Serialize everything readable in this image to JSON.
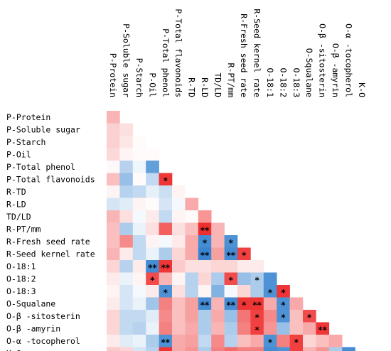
{
  "chart_data": {
    "type": "heatmap",
    "variables": [
      "P-Protein",
      "P-Soluble sugar",
      "P-Starch",
      "P-Oil",
      "P-Total phenol",
      "P-Total flavonoids",
      "R-TD",
      "R-LD",
      "TD/LD",
      "R-PT/mm",
      "R-Fresh seed rate",
      "R-Seed kernel rate",
      "O-18:1",
      "O-18:2",
      "O-18:3",
      "O-Squalane",
      "O-β -sitosterin",
      "O-β -amyrin",
      "O-α -tocopherol",
      "K-O"
    ],
    "scale": {
      "min": -1,
      "max": 1,
      "negative_color": "#2f7fcf",
      "neutral_color": "#ffffff",
      "positive_color": "#ee2b2b"
    },
    "matrix": [
      [
        0.35
      ],
      [
        0.22,
        0.15
      ],
      [
        0.22,
        0.12,
        0.02
      ],
      [
        0.18,
        0.05,
        0.02,
        0.02
      ],
      [
        0.03,
        -0.35,
        -0.08,
        -0.75
      ],
      [
        0.3,
        -0.5,
        0.02,
        -0.3,
        0.95
      ],
      [
        0.05,
        -0.35,
        -0.3,
        -0.12,
        -0.25,
        0.05
      ],
      [
        -0.2,
        -0.15,
        0.05,
        0.02,
        -0.2,
        -0.05,
        0.4
      ],
      [
        0.35,
        0.15,
        -0.05,
        0.1,
        -0.3,
        0.05,
        0.02,
        0.5
      ],
      [
        0.3,
        -0.4,
        -0.1,
        0.15,
        0.75,
        0.15,
        0.3,
        0.98,
        0.35
      ],
      [
        0.3,
        0.55,
        -0.3,
        0.05,
        -0.05,
        0.1,
        0.4,
        -0.9,
        0.35,
        -0.85
      ],
      [
        0.35,
        0.1,
        -0.3,
        -0.1,
        -0.4,
        0.2,
        0.4,
        -0.95,
        0.45,
        -0.9,
        0.9
      ],
      [
        0.2,
        -0.35,
        0.1,
        -0.9,
        0.95,
        0.25,
        0.15,
        0.15,
        0.2,
        0.2,
        0.1,
        0.1
      ],
      [
        0.1,
        -0.1,
        0.05,
        0.85,
        0.35,
        0.05,
        -0.35,
        0.2,
        -0.4,
        0.85,
        -0.5,
        -0.4,
        -0.85
      ],
      [
        0.05,
        -0.2,
        -0.05,
        0.1,
        -0.85,
        0.15,
        -0.35,
        0.05,
        -0.6,
        -0.05,
        0.2,
        -0.4,
        -0.85,
        0.95
      ],
      [
        0.1,
        -0.2,
        -0.1,
        -0.45,
        0.6,
        0.3,
        0.45,
        -0.9,
        0.35,
        -0.9,
        0.95,
        0.95,
        0.4,
        -0.85,
        0.4
      ],
      [
        0.2,
        -0.3,
        -0.3,
        -0.15,
        0.55,
        0.3,
        0.45,
        -0.4,
        0.4,
        -0.5,
        0.65,
        0.9,
        0.55,
        -0.85,
        0.3,
        0.85
      ],
      [
        0.2,
        -0.3,
        -0.35,
        -0.1,
        0.6,
        0.3,
        0.4,
        -0.4,
        0.35,
        -0.4,
        0.6,
        0.9,
        0.5,
        -0.5,
        0.3,
        0.4,
        0.95
      ],
      [
        0.1,
        -0.15,
        -0.1,
        -0.4,
        -0.85,
        0.4,
        0.45,
        -0.3,
        0.55,
        -0.35,
        0.3,
        0.4,
        -0.85,
        0.6,
        0.9,
        0.2,
        0.3,
        0.4
      ],
      [
        0.25,
        0.2,
        -0.2,
        -0.35,
        0.95,
        0.4,
        0.5,
        -0.4,
        0.6,
        0.7,
        0.6,
        0.6,
        -0.9,
        -0.85,
        0.9,
        0.35,
        0.5,
        -0.4,
        -0.9
      ]
    ],
    "significance": [
      [
        ""
      ],
      [
        "",
        ""
      ],
      [
        "",
        "",
        ""
      ],
      [
        "",
        "",
        "",
        ""
      ],
      [
        "",
        "",
        "",
        "",
        ""
      ],
      [
        "",
        "",
        "",
        "",
        "*",
        ""
      ],
      [
        "",
        "",
        "",
        "",
        "",
        "",
        ""
      ],
      [
        "",
        "",
        "",
        "",
        "",
        "",
        "",
        ""
      ],
      [
        "",
        "",
        "",
        "",
        "",
        "",
        "",
        "",
        ""
      ],
      [
        "",
        "",
        "",
        "",
        "",
        "",
        "",
        "**",
        "",
        ""
      ],
      [
        "",
        "",
        "",
        "",
        "",
        "",
        "",
        "*",
        "",
        "*",
        ""
      ],
      [
        "",
        "",
        "",
        "",
        "",
        "",
        "",
        "**",
        "",
        "**",
        "*",
        ""
      ],
      [
        "",
        "",
        "",
        "**",
        "**",
        "",
        "",
        "",
        "",
        "",
        "",
        "",
        ""
      ],
      [
        "",
        "",
        "",
        "*",
        "",
        "",
        "",
        "",
        "",
        "*",
        "",
        "*",
        "",
        ""
      ],
      [
        "",
        "",
        "",
        "",
        "*",
        "",
        "",
        "",
        "",
        "",
        "",
        "",
        "*",
        "*",
        ""
      ],
      [
        "",
        "",
        "",
        "",
        "",
        "",
        "",
        "**",
        "",
        "**",
        "*",
        "**",
        "",
        "*",
        "",
        ""
      ],
      [
        "",
        "",
        "",
        "",
        "",
        "",
        "",
        "",
        "",
        "",
        "",
        "*",
        "",
        "*",
        "",
        "*",
        ""
      ],
      [
        "",
        "",
        "",
        "",
        "",
        "",
        "",
        "",
        "",
        "",
        "",
        "*",
        "",
        "",
        "",
        "",
        "**",
        ""
      ],
      [
        "",
        "",
        "",
        "",
        "**",
        "",
        "",
        "",
        "",
        "",
        "",
        "",
        "*",
        "",
        "*",
        "",
        "",
        "",
        ""
      ],
      [
        "",
        "",
        "",
        "",
        "*",
        "",
        "",
        "",
        "",
        "",
        "",
        "",
        "**",
        "*",
        "*",
        "",
        "",
        "",
        "",
        "*"
      ]
    ]
  }
}
